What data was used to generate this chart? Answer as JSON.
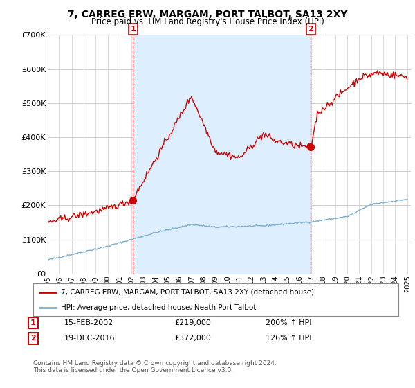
{
  "title": "7, CARREG ERW, MARGAM, PORT TALBOT, SA13 2XY",
  "subtitle": "Price paid vs. HM Land Registry's House Price Index (HPI)",
  "ylim": [
    0,
    700000
  ],
  "yticks": [
    0,
    100000,
    200000,
    300000,
    400000,
    500000,
    600000,
    700000
  ],
  "ytick_labels": [
    "£0",
    "£100K",
    "£200K",
    "£300K",
    "£400K",
    "£500K",
    "£600K",
    "£700K"
  ],
  "background_color": "#ffffff",
  "grid_color": "#cccccc",
  "sale1_date_num": 2002.12,
  "sale1_price": 219000,
  "sale2_date_num": 2016.96,
  "sale2_price": 372000,
  "sale1_date_str": "15-FEB-2002",
  "sale1_price_str": "£219,000",
  "sale1_hpi_str": "200% ↑ HPI",
  "sale2_date_str": "19-DEC-2016",
  "sale2_price_str": "£372,000",
  "sale2_hpi_str": "126% ↑ HPI",
  "red_color": "#cc0000",
  "blue_color": "#7aaccc",
  "fill_color": "#ddeeff",
  "legend_line1": "7, CARREG ERW, MARGAM, PORT TALBOT, SA13 2XY (detached house)",
  "legend_line2": "HPI: Average price, detached house, Neath Port Talbot",
  "footer": "Contains HM Land Registry data © Crown copyright and database right 2024.\nThis data is licensed under the Open Government Licence v3.0."
}
